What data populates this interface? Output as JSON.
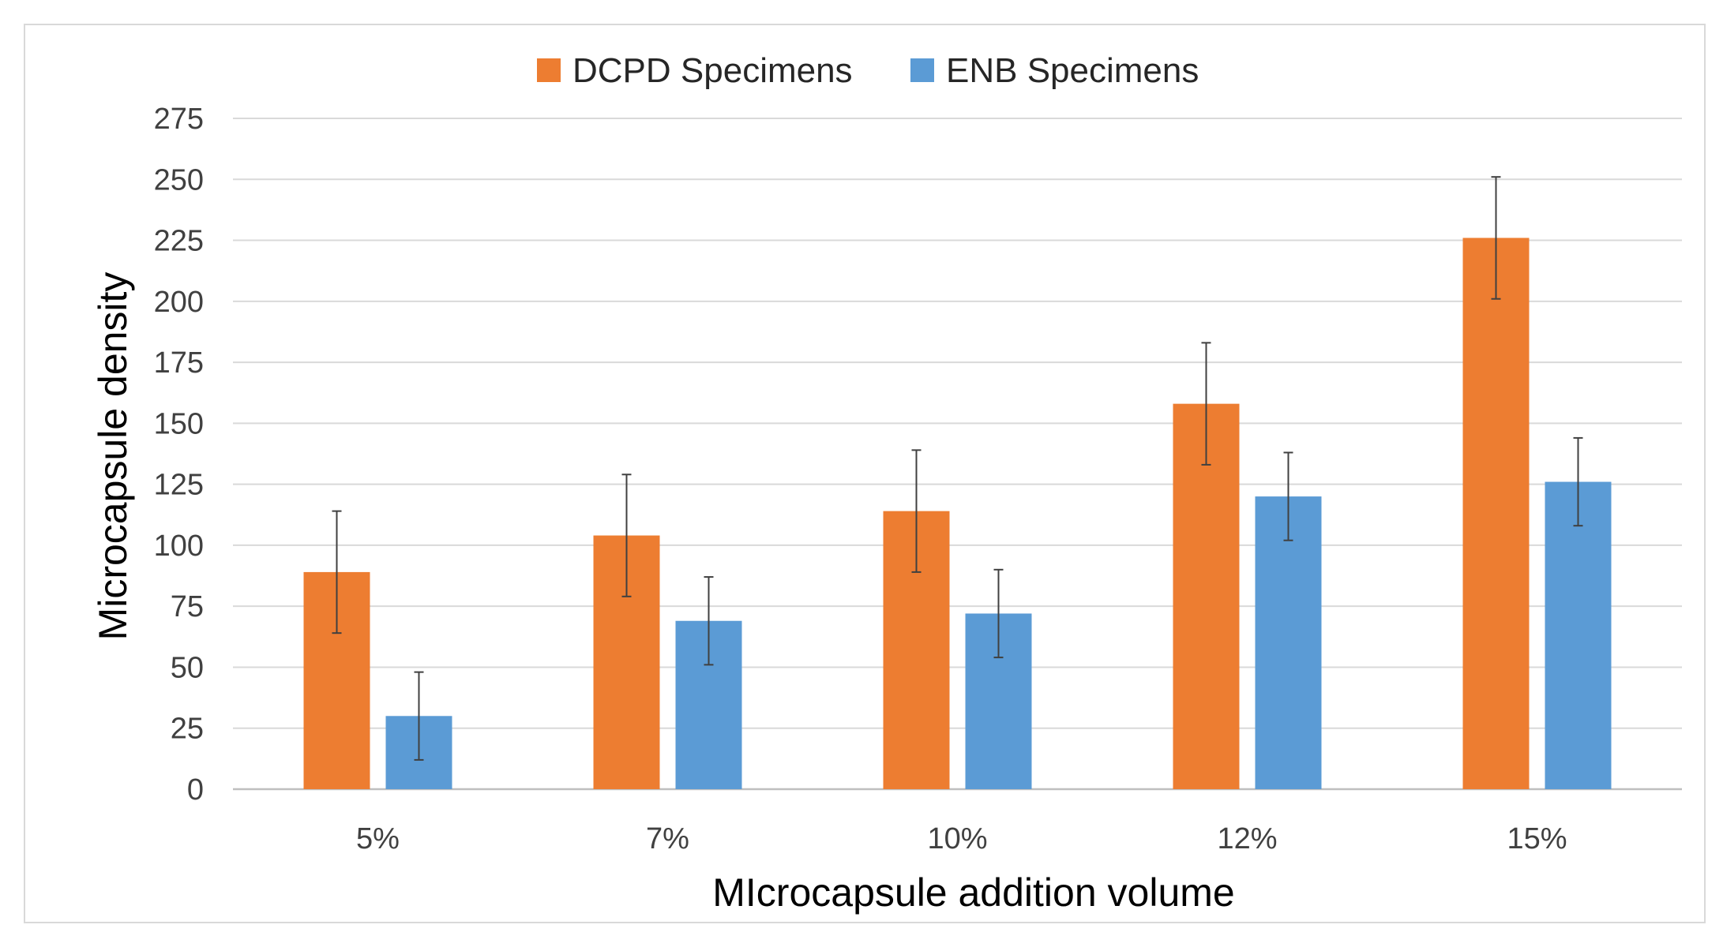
{
  "chart_data": {
    "type": "bar",
    "title": "",
    "xlabel": "MIcrocapsule addition volume",
    "ylabel": "Microcapsule density",
    "categories": [
      "5%",
      "7%",
      "10%",
      "12%",
      "15%"
    ],
    "ylim": [
      0,
      275
    ],
    "yticks": [
      0,
      25,
      50,
      75,
      100,
      125,
      150,
      175,
      200,
      225,
      250,
      275
    ],
    "grid": true,
    "legend_position": "top-center",
    "series": [
      {
        "name": "DCPD Specimens",
        "color": "#ED7D31",
        "values": [
          89,
          104,
          114,
          158,
          226
        ],
        "error": [
          25,
          25,
          25,
          25,
          25
        ]
      },
      {
        "name": "ENB Specimens",
        "color": "#5B9BD5",
        "values": [
          30,
          69,
          72,
          120,
          126
        ],
        "error": [
          18,
          18,
          18,
          18,
          18
        ]
      }
    ]
  }
}
